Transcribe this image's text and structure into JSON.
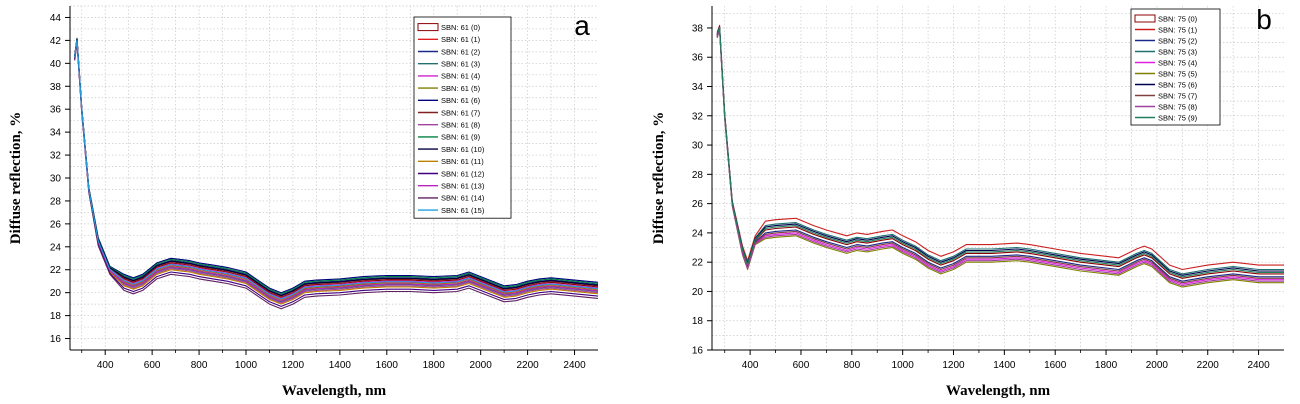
{
  "chart_data": [
    {
      "type": "line",
      "panel_label": "a",
      "xlabel": "Wavelength, nm",
      "ylabel": "Diffuse reflection, %",
      "xlim": [
        250,
        2500
      ],
      "ylim": [
        15,
        45
      ],
      "xticks": [
        400,
        600,
        800,
        1000,
        1200,
        1400,
        1600,
        1800,
        2000,
        2200,
        2400
      ],
      "yticks": [
        16,
        18,
        20,
        22,
        24,
        26,
        28,
        30,
        32,
        34,
        36,
        38,
        40,
        42,
        44
      ],
      "grid": true,
      "legend_position": "top-right",
      "x": [
        270,
        280,
        300,
        330,
        370,
        420,
        480,
        520,
        560,
        620,
        680,
        720,
        760,
        800,
        860,
        920,
        1000,
        1050,
        1100,
        1150,
        1200,
        1250,
        1300,
        1400,
        1500,
        1600,
        1700,
        1800,
        1900,
        1950,
        2000,
        2050,
        2100,
        2150,
        2200,
        2250,
        2300,
        2400,
        2500
      ],
      "base_values": [
        40.5,
        42.0,
        36.0,
        29.0,
        24.5,
        22.0,
        21.0,
        20.7,
        21.0,
        22.0,
        22.4,
        22.3,
        22.2,
        22.0,
        21.8,
        21.6,
        21.2,
        20.5,
        19.8,
        19.4,
        19.8,
        20.4,
        20.5,
        20.6,
        20.8,
        20.9,
        20.9,
        20.8,
        20.9,
        21.2,
        20.8,
        20.4,
        20.0,
        20.1,
        20.4,
        20.6,
        20.7,
        20.5,
        20.3
      ],
      "series": [
        {
          "name": "SBN: 61 (0)",
          "color": "#8b0000",
          "offset": 0.2
        },
        {
          "name": "SBN: 61 (1)",
          "color": "#e02020",
          "offset": 0.0
        },
        {
          "name": "SBN: 61 (2)",
          "color": "#1a2a8a",
          "offset": 0.4
        },
        {
          "name": "SBN: 61 (3)",
          "color": "#207070",
          "offset": -0.2
        },
        {
          "name": "SBN: 61 (4)",
          "color": "#d020d0",
          "offset": 0.1
        },
        {
          "name": "SBN: 61 (5)",
          "color": "#808000",
          "offset": -0.1
        },
        {
          "name": "SBN: 61 (6)",
          "color": "#000080",
          "offset": 0.6
        },
        {
          "name": "SBN: 61 (7)",
          "color": "#802020",
          "offset": 0.3
        },
        {
          "name": "SBN: 61 (8)",
          "color": "#a040a0",
          "offset": -0.3
        },
        {
          "name": "SBN: 61 (9)",
          "color": "#008040",
          "offset": 0.5
        },
        {
          "name": "SBN: 61 (10)",
          "color": "#000040",
          "offset": 0.35
        },
        {
          "name": "SBN: 61 (11)",
          "color": "#c08000",
          "offset": -0.4
        },
        {
          "name": "SBN: 61 (12)",
          "color": "#400080",
          "offset": -0.6
        },
        {
          "name": "SBN: 61 (13)",
          "color": "#c020c0",
          "offset": -0.15
        },
        {
          "name": "SBN: 61 (14)",
          "color": "#602060",
          "offset": -0.8
        },
        {
          "name": "SBN: 61 (15)",
          "color": "#20a0e0",
          "offset": 0.05
        }
      ]
    },
    {
      "type": "line",
      "panel_label": "b",
      "xlabel": "Wavelength, nm",
      "ylabel": "Diffuse reflection, %",
      "xlim": [
        250,
        2500
      ],
      "ylim": [
        16,
        39.5
      ],
      "xticks": [
        400,
        600,
        800,
        1000,
        1200,
        1400,
        1600,
        1800,
        2000,
        2200,
        2400
      ],
      "yticks": [
        16,
        18,
        20,
        22,
        24,
        26,
        28,
        30,
        32,
        34,
        36,
        38
      ],
      "grid": true,
      "legend_position": "top-right",
      "x": [
        270,
        280,
        300,
        330,
        370,
        390,
        420,
        460,
        500,
        580,
        650,
        700,
        780,
        820,
        860,
        920,
        960,
        1000,
        1050,
        1100,
        1150,
        1200,
        1250,
        1350,
        1450,
        1500,
        1600,
        1700,
        1850,
        1920,
        1950,
        1980,
        2050,
        2100,
        2200,
        2300,
        2400,
        2500
      ],
      "base_values": [
        37.5,
        38.0,
        32.0,
        26.0,
        22.8,
        21.8,
        23.5,
        24.2,
        24.3,
        24.4,
        23.9,
        23.6,
        23.2,
        23.4,
        23.3,
        23.5,
        23.6,
        23.2,
        22.8,
        22.2,
        21.8,
        22.1,
        22.6,
        22.6,
        22.7,
        22.6,
        22.3,
        22.0,
        21.7,
        22.3,
        22.5,
        22.3,
        21.2,
        20.9,
        21.2,
        21.4,
        21.2,
        21.2
      ],
      "series": [
        {
          "name": "SBN: 75 (0)",
          "color": "#8b0000",
          "offset": 0.0
        },
        {
          "name": "SBN: 75 (1)",
          "color": "#cc2020",
          "offset": 0.6
        },
        {
          "name": "SBN: 75 (2)",
          "color": "#1a2a8a",
          "offset": -0.2
        },
        {
          "name": "SBN: 75 (3)",
          "color": "#207070",
          "offset": 0.3
        },
        {
          "name": "SBN: 75 (4)",
          "color": "#e020e0",
          "offset": -0.4
        },
        {
          "name": "SBN: 75 (5)",
          "color": "#808000",
          "offset": -0.6
        },
        {
          "name": "SBN: 75 (6)",
          "color": "#000050",
          "offset": 0.2
        },
        {
          "name": "SBN: 75 (7)",
          "color": "#804040",
          "offset": -0.3
        },
        {
          "name": "SBN: 75 (8)",
          "color": "#a040a0",
          "offset": -0.5
        },
        {
          "name": "SBN: 75 (9)",
          "color": "#208060",
          "offset": 0.1
        }
      ]
    }
  ]
}
